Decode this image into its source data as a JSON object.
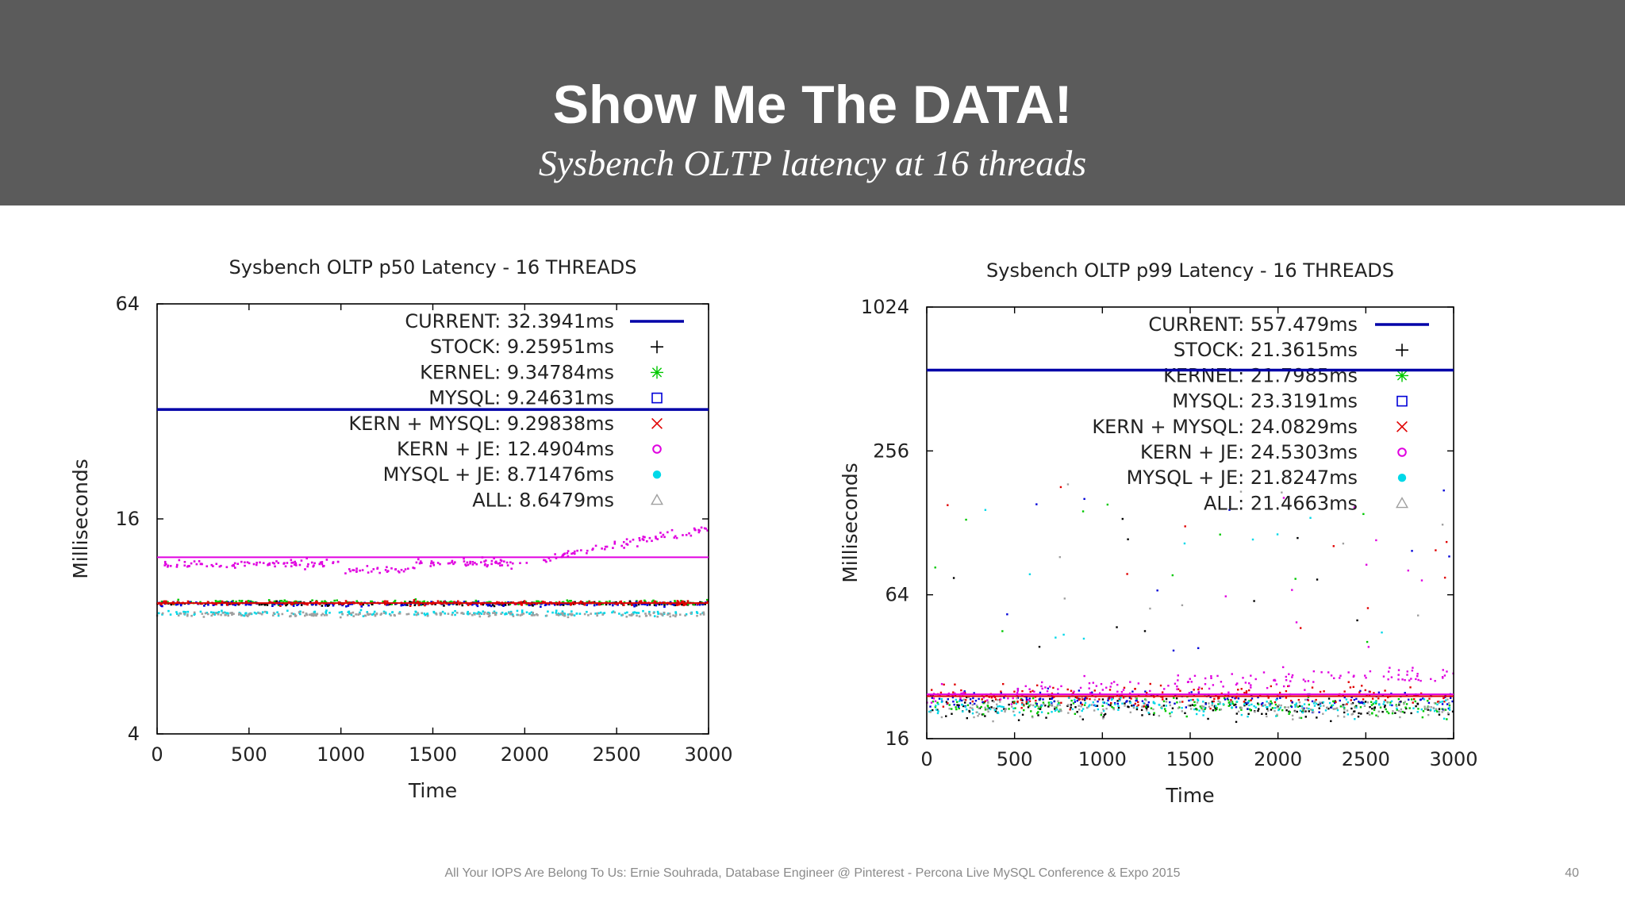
{
  "slide": {
    "title": "Show Me The DATA!",
    "subtitle": "Sysbench OLTP latency at 16 threads",
    "footer": "All Your IOPS Are Belong To Us: Ernie Souhrada, Database Engineer @ Pinterest - Percona Live MySQL Conference & Expo 2015",
    "page_number": "40"
  },
  "chart_data": [
    {
      "type": "scatter",
      "title": "Sysbench OLTP p50 Latency - 16 THREADS",
      "xlabel": "Time",
      "ylabel": "Milliseconds",
      "xlim": [
        0,
        3000
      ],
      "ylim": [
        4,
        64
      ],
      "y_scale": "log2",
      "x_ticks": [
        "0",
        "500",
        "1000",
        "1500",
        "2000",
        "2500",
        "3000"
      ],
      "y_ticks": [
        "4",
        "16",
        "64"
      ],
      "legend_position": "top-right",
      "series": [
        {
          "name": "CURRENT",
          "legend": "CURRENT: 32.3941ms",
          "value": 32.3941,
          "marker": "line",
          "color": "#0000a8"
        },
        {
          "name": "STOCK",
          "legend": "STOCK: 9.25951ms",
          "value": 9.25951,
          "marker": "plus",
          "color": "#000000"
        },
        {
          "name": "KERNEL",
          "legend": "KERNEL: 9.34784ms",
          "value": 9.34784,
          "marker": "star",
          "color": "#00c800"
        },
        {
          "name": "MYSQL",
          "legend": "MYSQL: 9.24631ms",
          "value": 9.24631,
          "marker": "square",
          "color": "#0000d8"
        },
        {
          "name": "KERN + MYSQL",
          "legend": "KERN + MYSQL: 9.29838ms",
          "value": 9.29838,
          "marker": "cross",
          "color": "#e00000"
        },
        {
          "name": "KERN + JE",
          "legend": "KERN + JE: 12.4904ms",
          "value": 12.4904,
          "marker": "circle",
          "color": "#e000e0"
        },
        {
          "name": "MYSQL + JE",
          "legend": "MYSQL + JE: 8.71476ms",
          "value": 8.71476,
          "marker": "dot",
          "color": "#00d8e8"
        },
        {
          "name": "ALL",
          "legend": "ALL: 8.6479ms",
          "value": 8.6479,
          "marker": "triangle",
          "color": "#a0a0a0"
        }
      ]
    },
    {
      "type": "scatter",
      "title": "Sysbench OLTP p99 Latency - 16 THREADS",
      "xlabel": "Time",
      "ylabel": "Milliseconds",
      "xlim": [
        0,
        3000
      ],
      "ylim": [
        16,
        1024
      ],
      "y_scale": "log2",
      "x_ticks": [
        "0",
        "500",
        "1000",
        "1500",
        "2000",
        "2500",
        "3000"
      ],
      "y_ticks": [
        "16",
        "64",
        "256",
        "1024"
      ],
      "legend_position": "top-right",
      "series": [
        {
          "name": "CURRENT",
          "legend": "CURRENT: 557.479ms",
          "value": 557.479,
          "marker": "line",
          "color": "#0000a8"
        },
        {
          "name": "STOCK",
          "legend": "STOCK: 21.3615ms",
          "value": 21.3615,
          "marker": "plus",
          "color": "#000000"
        },
        {
          "name": "KERNEL",
          "legend": "KERNEL: 21.7985ms",
          "value": 21.7985,
          "marker": "star",
          "color": "#00c800"
        },
        {
          "name": "MYSQL",
          "legend": "MYSQL: 23.3191ms",
          "value": 23.3191,
          "marker": "square",
          "color": "#0000d8"
        },
        {
          "name": "KERN + MYSQL",
          "legend": "KERN + MYSQL: 24.0829ms",
          "value": 24.0829,
          "marker": "cross",
          "color": "#e00000"
        },
        {
          "name": "KERN + JE",
          "legend": "KERN + JE: 24.5303ms",
          "value": 24.5303,
          "marker": "circle",
          "color": "#e000e0"
        },
        {
          "name": "MYSQL + JE",
          "legend": "MYSQL + JE: 21.8247ms",
          "value": 21.8247,
          "marker": "dot",
          "color": "#00d8e8"
        },
        {
          "name": "ALL",
          "legend": "ALL: 21.4663ms",
          "value": 21.4663,
          "marker": "triangle",
          "color": "#a0a0a0"
        }
      ]
    }
  ]
}
